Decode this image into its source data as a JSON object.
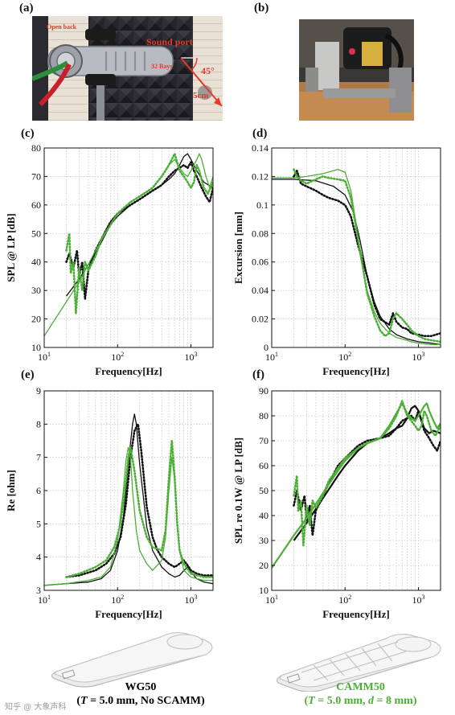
{
  "panels": {
    "a": {
      "label": "(a)",
      "annotations": {
        "open_back": "Open back",
        "sound_port": "Sound port",
        "bays": "32 Bays",
        "angle": "45°",
        "distance": "5cm"
      }
    },
    "b": {
      "label": "(b)"
    },
    "c": {
      "label": "(c)"
    },
    "d": {
      "label": "(d)"
    },
    "e": {
      "label": "(e)"
    },
    "f": {
      "label": "(f)"
    }
  },
  "renders": {
    "left": {
      "name": "WG50",
      "params_pre": "(",
      "params_T": "T",
      "params_post": " = 5.0 mm, No SCAMM)"
    },
    "right": {
      "name": "CAMM50",
      "params_pre": "(",
      "params_T": "T",
      "params_mid": " = 5.0 mm, ",
      "params_d": "d",
      "params_post": " = 8 mm)"
    }
  },
  "watermark": "知乎 @ 大象声科",
  "colors": {
    "black": "#111111",
    "green": "#4caf36",
    "grid": "#c8c8c8"
  },
  "chart_data": [
    {
      "id": "c",
      "type": "line",
      "xscale": "log",
      "xlim": [
        10,
        2000
      ],
      "ylim": [
        10,
        80
      ],
      "xlabel": "Frequency[Hz]",
      "ylabel": "SPL @ LP [dB]",
      "yticks": [
        10,
        20,
        30,
        40,
        50,
        60,
        70,
        80
      ],
      "series": [
        {
          "color": "black",
          "style": "solid",
          "width": 1.3,
          "x": [
            20,
            30,
            50,
            80,
            100,
            150,
            200,
            300,
            400,
            500,
            600,
            700,
            800,
            900,
            1000,
            1200,
            1500,
            2000
          ],
          "y": [
            28,
            34,
            43,
            53,
            56,
            60,
            62,
            65,
            67,
            69,
            71,
            74,
            77,
            78,
            76,
            72,
            68,
            66
          ]
        },
        {
          "color": "black",
          "style": "dotted",
          "width": 2.6,
          "x": [
            20,
            22,
            25,
            28,
            30,
            33,
            36,
            40,
            50,
            60,
            80,
            100,
            150,
            200,
            300,
            400,
            500,
            600,
            700,
            800,
            900,
            1000,
            1100,
            1200,
            1400,
            1600,
            1800,
            2000
          ],
          "y": [
            40,
            43,
            38,
            44,
            35,
            40,
            27,
            37,
            44,
            48,
            54,
            57,
            60,
            62,
            65,
            67,
            70,
            72,
            73,
            74,
            73,
            75,
            72,
            70,
            66,
            63,
            61,
            66
          ]
        },
        {
          "color": "green",
          "style": "solid",
          "width": 1.3,
          "x": [
            10,
            20,
            30,
            50,
            80,
            100,
            150,
            200,
            300,
            400,
            500,
            600,
            700,
            800,
            900,
            1000,
            1100,
            1200,
            1300,
            1400,
            1600,
            1800,
            2000
          ],
          "y": [
            14,
            26,
            33,
            44,
            53,
            57,
            61,
            63,
            66,
            70,
            74,
            76,
            73,
            71,
            70,
            72,
            74,
            76,
            78,
            76,
            70,
            66,
            70
          ]
        },
        {
          "color": "green",
          "style": "dotted",
          "width": 2.6,
          "x": [
            20,
            22,
            23,
            25,
            27,
            30,
            33,
            36,
            40,
            50,
            60,
            80,
            100,
            150,
            200,
            300,
            400,
            500,
            600,
            700,
            800,
            900,
            1000,
            1100,
            1200,
            1300,
            1500,
            1700,
            2000
          ],
          "y": [
            44,
            50,
            36,
            40,
            22,
            38,
            30,
            40,
            37,
            42,
            48,
            53,
            57,
            61,
            63,
            66,
            70,
            74,
            78,
            72,
            70,
            68,
            66,
            68,
            74,
            72,
            66,
            64,
            68
          ]
        }
      ]
    },
    {
      "id": "d",
      "type": "line",
      "xscale": "log",
      "xlim": [
        10,
        2000
      ],
      "ylim": [
        0,
        0.14
      ],
      "xlabel": "Frequency[Hz]",
      "ylabel": "Excursion [mm]",
      "yticks": [
        0,
        0.02,
        0.04,
        0.06,
        0.08,
        0.1,
        0.12,
        0.14
      ],
      "series": [
        {
          "color": "black",
          "style": "solid",
          "width": 1.3,
          "x": [
            10,
            20,
            40,
            70,
            100,
            130,
            160,
            200,
            250,
            300,
            400,
            500,
            700,
            1000,
            1500,
            2000
          ],
          "y": [
            0.118,
            0.118,
            0.117,
            0.113,
            0.107,
            0.095,
            0.075,
            0.05,
            0.032,
            0.022,
            0.013,
            0.009,
            0.006,
            0.004,
            0.003,
            0.002
          ]
        },
        {
          "color": "black",
          "style": "dotted",
          "width": 2.6,
          "x": [
            20,
            22,
            25,
            30,
            40,
            50,
            60,
            80,
            100,
            120,
            150,
            200,
            250,
            300,
            400,
            450,
            500,
            600,
            700,
            800,
            1000,
            1200,
            1500,
            2000
          ],
          "y": [
            0.12,
            0.124,
            0.115,
            0.113,
            0.11,
            0.107,
            0.105,
            0.103,
            0.1,
            0.092,
            0.072,
            0.05,
            0.03,
            0.02,
            0.016,
            0.024,
            0.018,
            0.014,
            0.013,
            0.01,
            0.009,
            0.008,
            0.008,
            0.01
          ]
        },
        {
          "color": "green",
          "style": "solid",
          "width": 1.3,
          "x": [
            10,
            20,
            30,
            50,
            80,
            100,
            120,
            140,
            160,
            200,
            250,
            300,
            400,
            500,
            600,
            800,
            1000,
            1500,
            2000
          ],
          "y": [
            0.119,
            0.119,
            0.12,
            0.122,
            0.125,
            0.123,
            0.11,
            0.088,
            0.065,
            0.04,
            0.025,
            0.017,
            0.01,
            0.007,
            0.006,
            0.004,
            0.003,
            0.002,
            0.002
          ]
        },
        {
          "color": "green",
          "style": "dotted",
          "width": 2.6,
          "x": [
            20,
            22,
            25,
            30,
            40,
            50,
            60,
            80,
            100,
            120,
            140,
            170,
            200,
            250,
            300,
            350,
            400,
            450,
            500,
            600,
            700,
            800,
            1000,
            1200,
            1500,
            2000
          ],
          "y": [
            0.125,
            0.12,
            0.117,
            0.115,
            0.118,
            0.12,
            0.119,
            0.118,
            0.117,
            0.105,
            0.085,
            0.06,
            0.038,
            0.022,
            0.012,
            0.008,
            0.01,
            0.02,
            0.024,
            0.02,
            0.016,
            0.012,
            0.008,
            0.006,
            0.005,
            0.004
          ]
        }
      ]
    },
    {
      "id": "e",
      "type": "line",
      "xscale": "log",
      "xlim": [
        10,
        2000
      ],
      "ylim": [
        3,
        9
      ],
      "xlabel": "Frequency[Hz]",
      "ylabel": "Re [ohm]",
      "yticks": [
        3,
        4,
        5,
        6,
        7,
        8,
        9
      ],
      "series": [
        {
          "color": "black",
          "style": "solid",
          "width": 1.3,
          "x": [
            10,
            20,
            40,
            60,
            80,
            100,
            120,
            140,
            160,
            170,
            180,
            200,
            250,
            300,
            400,
            500,
            600,
            700,
            800,
            900,
            1000,
            1200,
            1500,
            2000
          ],
          "y": [
            3.15,
            3.2,
            3.25,
            3.35,
            3.6,
            4.2,
            5.2,
            6.8,
            8.0,
            8.3,
            8.0,
            6.8,
            4.9,
            4.2,
            3.7,
            3.5,
            3.4,
            3.45,
            3.6,
            3.7,
            3.55,
            3.35,
            3.25,
            3.2
          ]
        },
        {
          "color": "black",
          "style": "dotted",
          "width": 2.6,
          "x": [
            20,
            30,
            50,
            70,
            90,
            110,
            130,
            150,
            170,
            190,
            210,
            250,
            300,
            350,
            400,
            500,
            600,
            700,
            800,
            900,
            1000,
            1200,
            1500,
            2000
          ],
          "y": [
            3.4,
            3.45,
            3.6,
            3.8,
            4.1,
            4.6,
            5.6,
            7.0,
            7.8,
            8.0,
            7.2,
            5.5,
            4.6,
            4.2,
            4.0,
            3.8,
            3.7,
            3.8,
            3.9,
            3.75,
            3.6,
            3.5,
            3.45,
            3.45
          ]
        },
        {
          "color": "green",
          "style": "solid",
          "width": 1.3,
          "x": [
            10,
            20,
            40,
            60,
            80,
            100,
            120,
            130,
            140,
            150,
            160,
            180,
            200,
            250,
            300,
            400,
            450,
            500,
            550,
            600,
            650,
            700,
            800,
            1000,
            1500,
            2000
          ],
          "y": [
            3.15,
            3.2,
            3.3,
            3.4,
            3.7,
            4.5,
            6.0,
            6.9,
            7.3,
            7.0,
            6.0,
            4.8,
            4.2,
            3.8,
            3.6,
            3.9,
            4.6,
            6.0,
            7.0,
            6.3,
            5.0,
            4.2,
            3.6,
            3.4,
            3.3,
            3.3
          ]
        },
        {
          "color": "green",
          "style": "dotted",
          "width": 2.6,
          "x": [
            20,
            30,
            50,
            70,
            90,
            110,
            130,
            140,
            150,
            170,
            200,
            250,
            300,
            400,
            450,
            500,
            550,
            600,
            650,
            700,
            800,
            1000,
            1500,
            2000
          ],
          "y": [
            3.4,
            3.5,
            3.7,
            3.9,
            4.3,
            5.0,
            6.3,
            7.0,
            7.3,
            6.6,
            5.4,
            4.6,
            4.3,
            4.2,
            4.8,
            6.4,
            7.5,
            6.4,
            5.0,
            4.2,
            3.8,
            3.5,
            3.4,
            3.4
          ]
        }
      ]
    },
    {
      "id": "f",
      "type": "line",
      "xscale": "log",
      "xlim": [
        10,
        2000
      ],
      "ylim": [
        10,
        90
      ],
      "xlabel": "Frequency[Hz]",
      "ylabel": "SPL re 0.1W @ LP [dB]",
      "yticks": [
        10,
        20,
        30,
        40,
        50,
        60,
        70,
        80,
        90
      ],
      "series": [
        {
          "color": "black",
          "style": "solid",
          "width": 2.2,
          "x": [
            20,
            30,
            50,
            80,
            100,
            150,
            200,
            300,
            400,
            500,
            600,
            700,
            800,
            900,
            1000,
            1100,
            1200,
            1400,
            1600,
            2000
          ],
          "y": [
            30,
            37,
            47,
            56,
            60,
            66,
            69,
            71,
            73,
            75,
            76,
            79,
            83,
            84,
            82,
            78,
            75,
            73,
            74,
            73
          ]
        },
        {
          "color": "black",
          "style": "dotted",
          "width": 2.6,
          "x": [
            20,
            22,
            25,
            28,
            30,
            33,
            36,
            40,
            50,
            60,
            80,
            100,
            150,
            200,
            300,
            400,
            500,
            600,
            700,
            800,
            900,
            1000,
            1100,
            1200,
            1400,
            1600,
            1800,
            2000
          ],
          "y": [
            44,
            50,
            42,
            48,
            38,
            44,
            32,
            42,
            48,
            53,
            60,
            63,
            68,
            70,
            71,
            72,
            75,
            78,
            79,
            80,
            78,
            82,
            78,
            74,
            71,
            68,
            66,
            70
          ]
        },
        {
          "color": "green",
          "style": "solid",
          "width": 2.2,
          "x": [
            10,
            20,
            30,
            50,
            80,
            100,
            150,
            200,
            300,
            400,
            500,
            600,
            700,
            800,
            900,
            1000,
            1100,
            1200,
            1300,
            1400,
            1600,
            1800,
            2000
          ],
          "y": [
            19,
            32,
            39,
            49,
            58,
            62,
            67,
            69,
            71,
            76,
            81,
            85,
            81,
            79,
            78,
            80,
            82,
            84,
            85,
            82,
            78,
            75,
            77
          ]
        },
        {
          "color": "green",
          "style": "dotted",
          "width": 2.6,
          "x": [
            20,
            22,
            23,
            25,
            27,
            30,
            33,
            36,
            40,
            50,
            60,
            80,
            100,
            150,
            200,
            300,
            400,
            500,
            600,
            700,
            800,
            900,
            1000,
            1100,
            1200,
            1300,
            1500,
            1700,
            2000
          ],
          "y": [
            48,
            56,
            42,
            46,
            28,
            44,
            36,
            46,
            43,
            48,
            54,
            59,
            63,
            67,
            69,
            71,
            75,
            80,
            86,
            80,
            78,
            76,
            74,
            76,
            82,
            80,
            74,
            72,
            76
          ]
        }
      ]
    }
  ]
}
